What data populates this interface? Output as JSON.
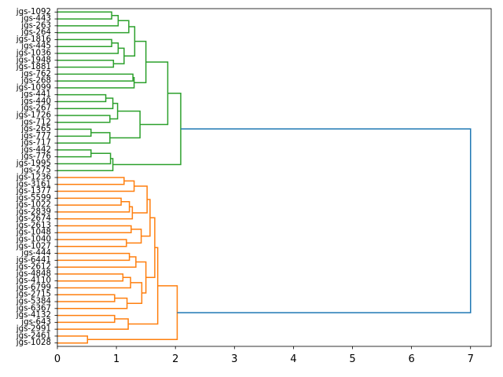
{
  "chart_data": {
    "type": "dendrogram",
    "orientation": "right",
    "title": "",
    "xlabel": "",
    "ylabel": "",
    "xlim": [
      0,
      7.35
    ],
    "x_ticks": [
      0,
      1,
      2,
      3,
      4,
      5,
      6,
      7
    ],
    "grid": false,
    "leaves": [
      "jgs-1092",
      "jgs-443",
      "jgs-263",
      "jgs-264",
      "jgs-1816",
      "jgs-445",
      "jgs-1036",
      "jgs-1948",
      "jgs-1881",
      "jgs-762",
      "jgs-268",
      "jgs-1099",
      "jgs-441",
      "jgs-440",
      "jgs-267",
      "jgs-1726",
      "jgs-712",
      "jgs-265",
      "jgs-777",
      "jgs-717",
      "jgs-442",
      "jgs-776",
      "jgs-1995",
      "jgs-275",
      "jgs-1236",
      "jgs-3161",
      "jgs-1377",
      "jgs-5599",
      "jgs-1022",
      "jgs-2839",
      "jgs-2674",
      "jgs-2613",
      "jgs-1048",
      "jgs-1040",
      "jgs-1027",
      "jgs-444",
      "jgs-6441",
      "jgs-2612",
      "jgs-4848",
      "jgs-4110",
      "jgs-6799",
      "jgs-2715",
      "jgs-5384",
      "jgs-6367",
      "jgs-4132",
      "jgs-643",
      "jgs-2991",
      "jgs-2461",
      "jgs-1028"
    ],
    "colors": {
      "green": "#2ca02c",
      "orange": "#ff7f0e",
      "blue": "#1f77b4",
      "axis": "#000000"
    },
    "links": [
      {
        "a": "L0",
        "b": "L1",
        "h": 0.92,
        "c": "green"
      },
      {
        "a": "N0",
        "b": "L2",
        "h": 1.03,
        "c": "green"
      },
      {
        "a": "N1",
        "b": "L3",
        "h": 1.21,
        "c": "green"
      },
      {
        "a": "L4",
        "b": "L5",
        "h": 0.92,
        "c": "green"
      },
      {
        "a": "N3",
        "b": "L6",
        "h": 1.03,
        "c": "green"
      },
      {
        "a": "L7",
        "b": "L8",
        "h": 0.95,
        "c": "green"
      },
      {
        "a": "N4",
        "b": "N5",
        "h": 1.13,
        "c": "green"
      },
      {
        "a": "N2",
        "b": "N6",
        "h": 1.31,
        "c": "green"
      },
      {
        "a": "L9",
        "b": "L10",
        "h": 1.28,
        "c": "green"
      },
      {
        "a": "N8",
        "b": "L11",
        "h": 1.3,
        "c": "green"
      },
      {
        "a": "N7",
        "b": "N9",
        "h": 1.5,
        "c": "green"
      },
      {
        "a": "L12",
        "b": "L13",
        "h": 0.82,
        "c": "green"
      },
      {
        "a": "N11",
        "b": "L14",
        "h": 0.94,
        "c": "green"
      },
      {
        "a": "L15",
        "b": "L16",
        "h": 0.89,
        "c": "green"
      },
      {
        "a": "N12",
        "b": "N13",
        "h": 1.02,
        "c": "green"
      },
      {
        "a": "L17",
        "b": "L18",
        "h": 0.57,
        "c": "green"
      },
      {
        "a": "N15",
        "b": "L19",
        "h": 0.89,
        "c": "green"
      },
      {
        "a": "N14",
        "b": "N16",
        "h": 1.4,
        "c": "green"
      },
      {
        "a": "N10",
        "b": "N17",
        "h": 1.87,
        "c": "green"
      },
      {
        "a": "L20",
        "b": "L21",
        "h": 0.57,
        "c": "green"
      },
      {
        "a": "N19",
        "b": "L22",
        "h": 0.9,
        "c": "green"
      },
      {
        "a": "N20",
        "b": "L23",
        "h": 0.94,
        "c": "green"
      },
      {
        "a": "N18",
        "b": "N21",
        "h": 2.09,
        "c": "green"
      },
      {
        "a": "L24",
        "b": "L25",
        "h": 1.13,
        "c": "orange"
      },
      {
        "a": "N23",
        "b": "L26",
        "h": 1.3,
        "c": "orange"
      },
      {
        "a": "L27",
        "b": "L28",
        "h": 1.08,
        "c": "orange"
      },
      {
        "a": "N25",
        "b": "L29",
        "h": 1.22,
        "c": "orange"
      },
      {
        "a": "N26",
        "b": "L30",
        "h": 1.27,
        "c": "orange"
      },
      {
        "a": "N24",
        "b": "N27",
        "h": 1.52,
        "c": "orange"
      },
      {
        "a": "L31",
        "b": "L32",
        "h": 1.25,
        "c": "orange"
      },
      {
        "a": "L33",
        "b": "L34",
        "h": 1.17,
        "c": "orange"
      },
      {
        "a": "N29",
        "b": "N30",
        "h": 1.42,
        "c": "orange"
      },
      {
        "a": "N28",
        "b": "N31",
        "h": 1.57,
        "c": "orange"
      },
      {
        "a": "L35",
        "b": "L36",
        "h": 1.22,
        "c": "orange"
      },
      {
        "a": "N33",
        "b": "L37",
        "h": 1.33,
        "c": "orange"
      },
      {
        "a": "L38",
        "b": "L39",
        "h": 1.11,
        "c": "orange"
      },
      {
        "a": "N35",
        "b": "L40",
        "h": 1.24,
        "c": "orange"
      },
      {
        "a": "L41",
        "b": "L42",
        "h": 0.97,
        "c": "orange"
      },
      {
        "a": "N37",
        "b": "L43",
        "h": 1.18,
        "c": "orange"
      },
      {
        "a": "N36",
        "b": "N38",
        "h": 1.43,
        "c": "orange"
      },
      {
        "a": "N34",
        "b": "N39",
        "h": 1.5,
        "c": "orange"
      },
      {
        "a": "N32",
        "b": "N40",
        "h": 1.65,
        "c": "orange"
      },
      {
        "a": "L44",
        "b": "L45",
        "h": 0.97,
        "c": "orange"
      },
      {
        "a": "N42",
        "b": "L46",
        "h": 1.2,
        "c": "orange"
      },
      {
        "a": "N41",
        "b": "N43",
        "h": 1.7,
        "c": "orange"
      },
      {
        "a": "L47",
        "b": "L48",
        "h": 0.51,
        "c": "orange"
      },
      {
        "a": "N44",
        "b": "N45",
        "h": 2.03,
        "c": "orange"
      },
      {
        "a": "N22",
        "b": "N46",
        "h": 7.0,
        "c": "blue"
      }
    ]
  }
}
